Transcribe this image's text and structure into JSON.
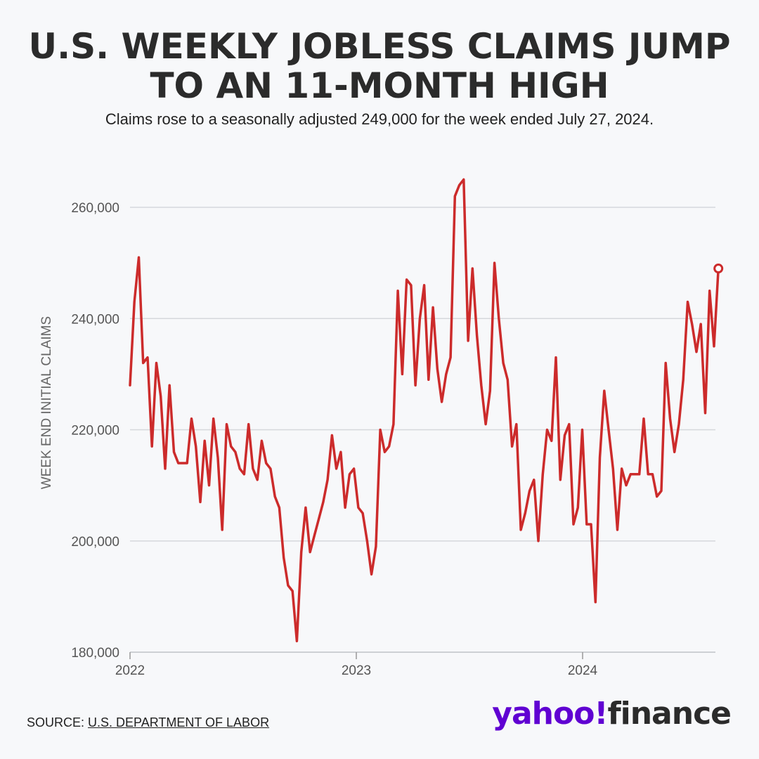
{
  "header": {
    "title_line1": "U.S. WEEKLY JOBLESS CLAIMS JUMP",
    "title_line2": "TO AN 11-MONTH HIGH",
    "subtitle": "Claims rose to a seasonally adjusted 249,000 for the week ended July 27, 2024."
  },
  "footer": {
    "source_prefix": "SOURCE: ",
    "source_link": "U.S. DEPARTMENT OF LABOR",
    "logo_yahoo": "yahoo!",
    "logo_finance": "finance"
  },
  "colors": {
    "line": "#cc2b2b",
    "grid": "#d6d8dc",
    "brand": "#6001d2"
  },
  "chart_data": {
    "type": "line",
    "ylabel": "WEEK END INITIAL CLAIMS",
    "xlabel": "",
    "ylim": [
      180000,
      264000
    ],
    "yticks": [
      180000,
      200000,
      220000,
      240000,
      260000
    ],
    "ytick_labels": [
      "180,000",
      "200,000",
      "220,000",
      "240,000",
      "260,000"
    ],
    "xticks": [
      2022,
      2023,
      2024
    ],
    "xtick_labels": [
      "2022",
      "2023",
      "2024"
    ],
    "x_range": [
      2022.0,
      2024.6
    ],
    "grid": true,
    "last_point_marker": true,
    "series": [
      {
        "values": [
          228000,
          243000,
          251000,
          232000,
          233000,
          217000,
          232000,
          226000,
          213000,
          228000,
          216000,
          214000,
          214000,
          214000,
          222000,
          217000,
          207000,
          218000,
          210000,
          222000,
          215000,
          202000,
          221000,
          217000,
          216000,
          213000,
          212000,
          221000,
          213000,
          211000,
          218000,
          214000,
          213000,
          208000,
          206000,
          197000,
          192000,
          191000,
          182000,
          198000,
          206000,
          198000,
          201000,
          204000,
          207000,
          211000,
          219000,
          213000,
          216000,
          206000,
          212000,
          213000,
          206000,
          205000,
          200000,
          194000,
          199000,
          220000,
          216000,
          217000,
          221000,
          245000,
          230000,
          247000,
          246000,
          228000,
          240000,
          246000,
          229000,
          242000,
          231000,
          225000,
          230000,
          233000,
          262000,
          264000,
          265000,
          236000,
          249000,
          237000,
          228000,
          221000,
          227000,
          250000,
          240000,
          232000,
          229000,
          217000,
          221000,
          202000,
          205000,
          209000,
          211000,
          200000,
          212000,
          220000,
          218000,
          233000,
          211000,
          219000,
          221000,
          203000,
          206000,
          220000,
          203000,
          203000,
          189000,
          215000,
          227000,
          220000,
          213000,
          202000,
          213000,
          210000,
          212000,
          212000,
          212000,
          222000,
          212000,
          212000,
          208000,
          209000,
          232000,
          222000,
          216000,
          221000,
          229000,
          243000,
          239000,
          234000,
          239000,
          223000,
          245000,
          235000,
          249000
        ]
      }
    ]
  }
}
